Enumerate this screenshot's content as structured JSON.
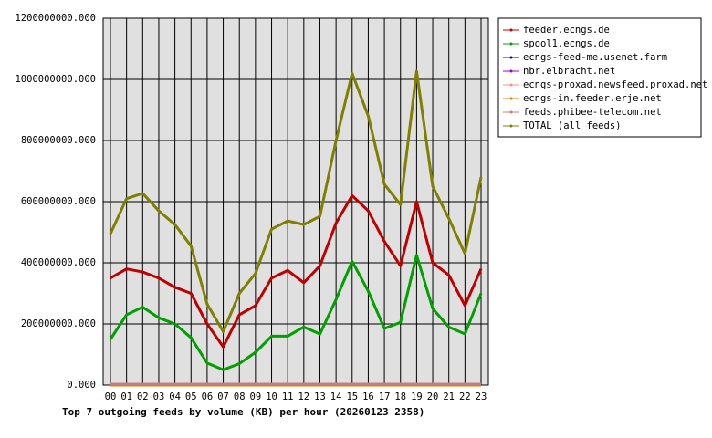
{
  "chart_data": {
    "type": "line",
    "title": "Top 7 outgoing feeds by volume (KB) per hour (20260123 2358)",
    "categories": [
      "00",
      "01",
      "02",
      "03",
      "04",
      "05",
      "06",
      "07",
      "08",
      "09",
      "10",
      "11",
      "12",
      "13",
      "14",
      "15",
      "16",
      "17",
      "18",
      "19",
      "20",
      "21",
      "22",
      "23"
    ],
    "series": [
      {
        "name": "feeder.ecngs.de",
        "color": "#c00000",
        "values": [
          350000000,
          380000000,
          370000000,
          350000000,
          320000000,
          300000000,
          200000000,
          125000000,
          230000000,
          260000000,
          350000000,
          375000000,
          335000000,
          390000000,
          530000000,
          620000000,
          570000000,
          470000000,
          390000000,
          600000000,
          400000000,
          360000000,
          260000000,
          380000000
        ]
      },
      {
        "name": "spool1.ecngs.de",
        "color": "#00a000",
        "values": [
          150000000,
          230000000,
          255000000,
          220000000,
          200000000,
          155000000,
          72000000,
          50000000,
          70000000,
          107000000,
          160000000,
          160000000,
          190000000,
          167000000,
          280000000,
          405000000,
          307000000,
          185000000,
          205000000,
          425000000,
          250000000,
          190000000,
          167000000,
          300000000
        ]
      },
      {
        "name": "ecngs-feed-me.usenet.farm",
        "color": "#0000c0",
        "values": [
          0,
          0,
          0,
          0,
          0,
          0,
          0,
          0,
          0,
          0,
          0,
          0,
          0,
          0,
          0,
          0,
          0,
          0,
          0,
          0,
          0,
          0,
          0,
          0
        ]
      },
      {
        "name": "nbr.elbracht.net",
        "color": "#a000c0",
        "values": [
          0,
          0,
          0,
          0,
          0,
          0,
          0,
          0,
          0,
          0,
          0,
          0,
          0,
          0,
          0,
          0,
          0,
          0,
          0,
          0,
          0,
          0,
          0,
          0
        ]
      },
      {
        "name": "ecngs-proxad.newsfeed.proxad.net",
        "color": "#ff9080",
        "values": [
          0,
          0,
          0,
          0,
          0,
          0,
          0,
          0,
          0,
          0,
          0,
          0,
          0,
          0,
          0,
          0,
          0,
          0,
          0,
          0,
          0,
          0,
          0,
          0
        ]
      },
      {
        "name": "ecngs-in.feeder.erje.net",
        "color": "#e08000",
        "values": [
          0,
          0,
          0,
          0,
          0,
          0,
          0,
          0,
          0,
          0,
          0,
          0,
          0,
          0,
          0,
          0,
          0,
          0,
          0,
          0,
          0,
          0,
          0,
          0
        ]
      },
      {
        "name": "feeds.phibee-telecom.net",
        "color": "#c08080",
        "values": [
          3000000,
          3000000,
          3000000,
          3000000,
          3000000,
          3000000,
          3000000,
          3000000,
          3000000,
          3000000,
          3000000,
          3000000,
          3000000,
          3000000,
          3000000,
          3000000,
          3000000,
          3000000,
          3000000,
          3000000,
          3000000,
          3000000,
          3000000,
          3000000
        ]
      },
      {
        "name": "TOTAL (all feeds)",
        "color": "#808000",
        "values": [
          495000000,
          610000000,
          627000000,
          570000000,
          525000000,
          455000000,
          265000000,
          175000000,
          300000000,
          365000000,
          510000000,
          537000000,
          525000000,
          552000000,
          800000000,
          1020000000,
          880000000,
          657000000,
          590000000,
          1027000000,
          650000000,
          545000000,
          430000000,
          680000000
        ]
      }
    ],
    "ylim": [
      0,
      1200000000
    ],
    "yticks": [
      {
        "value": 0,
        "label": "0.000"
      },
      {
        "value": 200000000,
        "label": "200000000.000"
      },
      {
        "value": 400000000,
        "label": "400000000.000"
      },
      {
        "value": 600000000,
        "label": "600000000.000"
      },
      {
        "value": 800000000,
        "label": "800000000.000"
      },
      {
        "value": 1000000000,
        "label": "1000000000.000"
      },
      {
        "value": 1200000000,
        "label": "1200000000.000"
      }
    ],
    "grid": true
  }
}
